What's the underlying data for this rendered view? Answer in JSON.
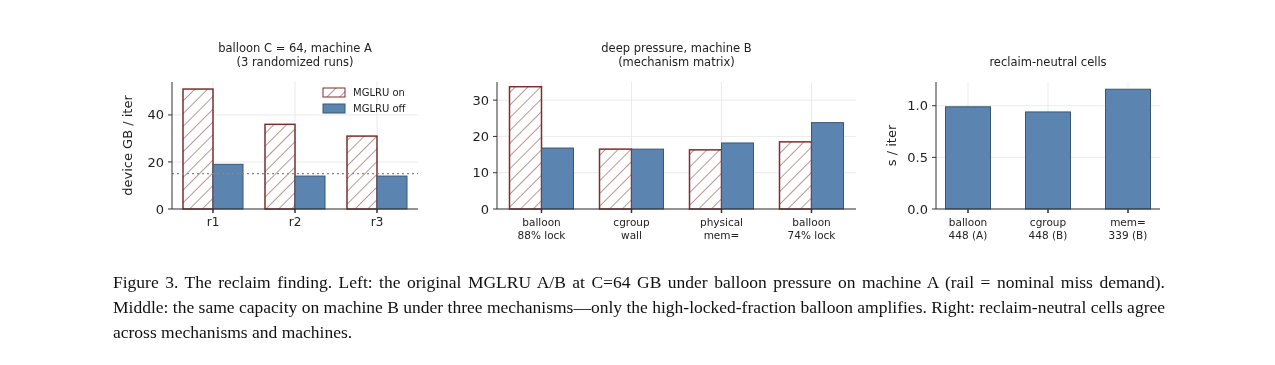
{
  "chart_data": [
    {
      "type": "bar",
      "title": "balloon C = 64, machine A",
      "subtitle": "(3 randomized runs)",
      "ylabel": "device GB / iter",
      "categories": [
        "r1",
        "r2",
        "r3"
      ],
      "series": [
        {
          "name": "MGLRU on",
          "color": "#7b2f2f",
          "values": [
            51,
            36,
            31
          ]
        },
        {
          "name": "MGLRU off",
          "color": "#5b84b1",
          "values": [
            19,
            14,
            14
          ]
        }
      ],
      "ylim": [
        0,
        54
      ],
      "yticks": [
        0,
        20,
        40
      ],
      "grid": true,
      "legend": "top right",
      "ref_lines": [
        {
          "axis": "y",
          "value": 15,
          "color": "#888888",
          "line_style": "dotted"
        }
      ],
      "annotations": [
        "Figure 3. The reclaim finding. Left: the original MGLRU A/B at C=64 GB under balloon pressure on machine A (rail = nominal miss demand). Middle: the same capacity on machine B under three mechanisms—only the high-locked-fraction balloon amplifies. Right: reclaim-neutral cells agree across mechanisms and machines."
      ]
    },
    {
      "type": "bar",
      "title": "deep pressure, machine B",
      "subtitle": "(mechanism matrix)",
      "categories": [
        "balloon\n88% lock",
        "cgroup\nwall",
        "physical\nmem=",
        "balloon\n74% lock"
      ],
      "series": [
        {
          "color": "#7b2f2f",
          "values": [
            33.7,
            16.5,
            16.3,
            18.5
          ]
        },
        {
          "color": "#5b84b1",
          "values": [
            16.8,
            16.5,
            18.2,
            23.8
          ]
        }
      ],
      "ylim": [
        0,
        35
      ],
      "yticks": [
        0,
        10,
        20,
        30
      ],
      "grid": true
    },
    {
      "type": "bar",
      "title": "reclaim-neutral cells",
      "ylabel": "s / iter",
      "categories": [
        "balloon\n448 (A)",
        "cgroup\n448 (B)",
        "mem=\n339 (B)"
      ],
      "series": [
        {
          "color": "#5b84b1",
          "values": [
            0.99,
            0.94,
            1.16
          ]
        }
      ],
      "ylim": [
        0,
        1.23
      ],
      "yticks": [
        {
          "value": 0,
          "label": "0.0"
        },
        {
          "value": 0.5,
          "label": "0.5"
        },
        {
          "value": 1,
          "label": "1.0"
        }
      ],
      "grid": true
    }
  ]
}
